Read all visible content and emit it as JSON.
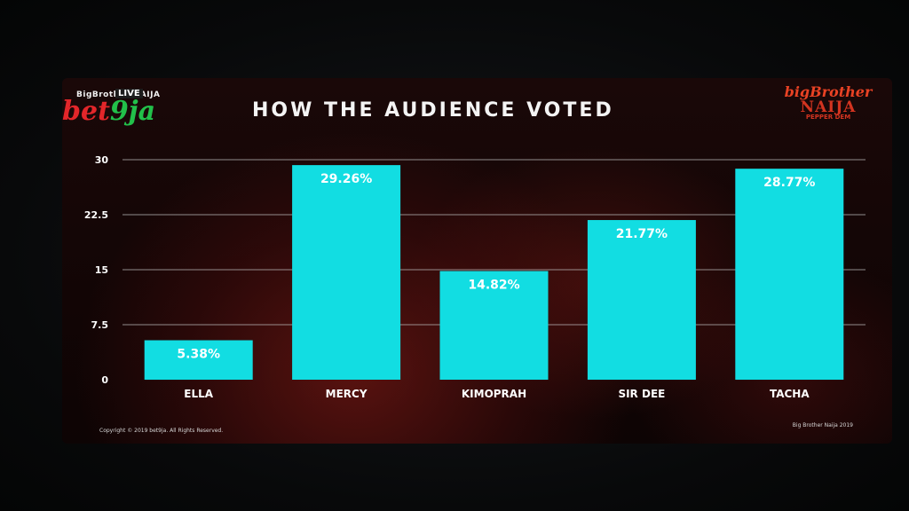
{
  "logos": {
    "left_small": "BigBrother NAIJA",
    "left_live": "LIVE",
    "left_brand_a": "bet",
    "left_brand_b": "9ja",
    "right_line1": "bigBrother",
    "right_line2": "NAIJA",
    "right_line3": "PEPPER DEM"
  },
  "footer": {
    "left": "Copyright © 2019 bet9ja. All Rights Reserved.",
    "right": "Big Brother Naija 2019"
  },
  "colors": {
    "bar": "#12dde2",
    "bar_label": "#ffffff",
    "grid": "#b9b9b9",
    "tick": "#ffffff"
  },
  "chart_data": {
    "type": "bar",
    "title": "HOW THE AUDIENCE VOTED",
    "categories": [
      "ELLA",
      "MERCY",
      "KIMOPRAH",
      "SIR DEE",
      "TACHA"
    ],
    "values": [
      5.38,
      29.26,
      14.82,
      21.77,
      28.77
    ],
    "data_labels": [
      "5.38%",
      "29.26%",
      "14.82%",
      "21.77%",
      "28.77%"
    ],
    "y_ticks": [
      0,
      7.5,
      15,
      22.5,
      30
    ],
    "y_tick_labels": [
      "0",
      "7.5",
      "15",
      "22.5",
      "30"
    ],
    "ylim": [
      0,
      30
    ],
    "grid": true,
    "legend": "none",
    "xlabel": "",
    "ylabel": ""
  }
}
